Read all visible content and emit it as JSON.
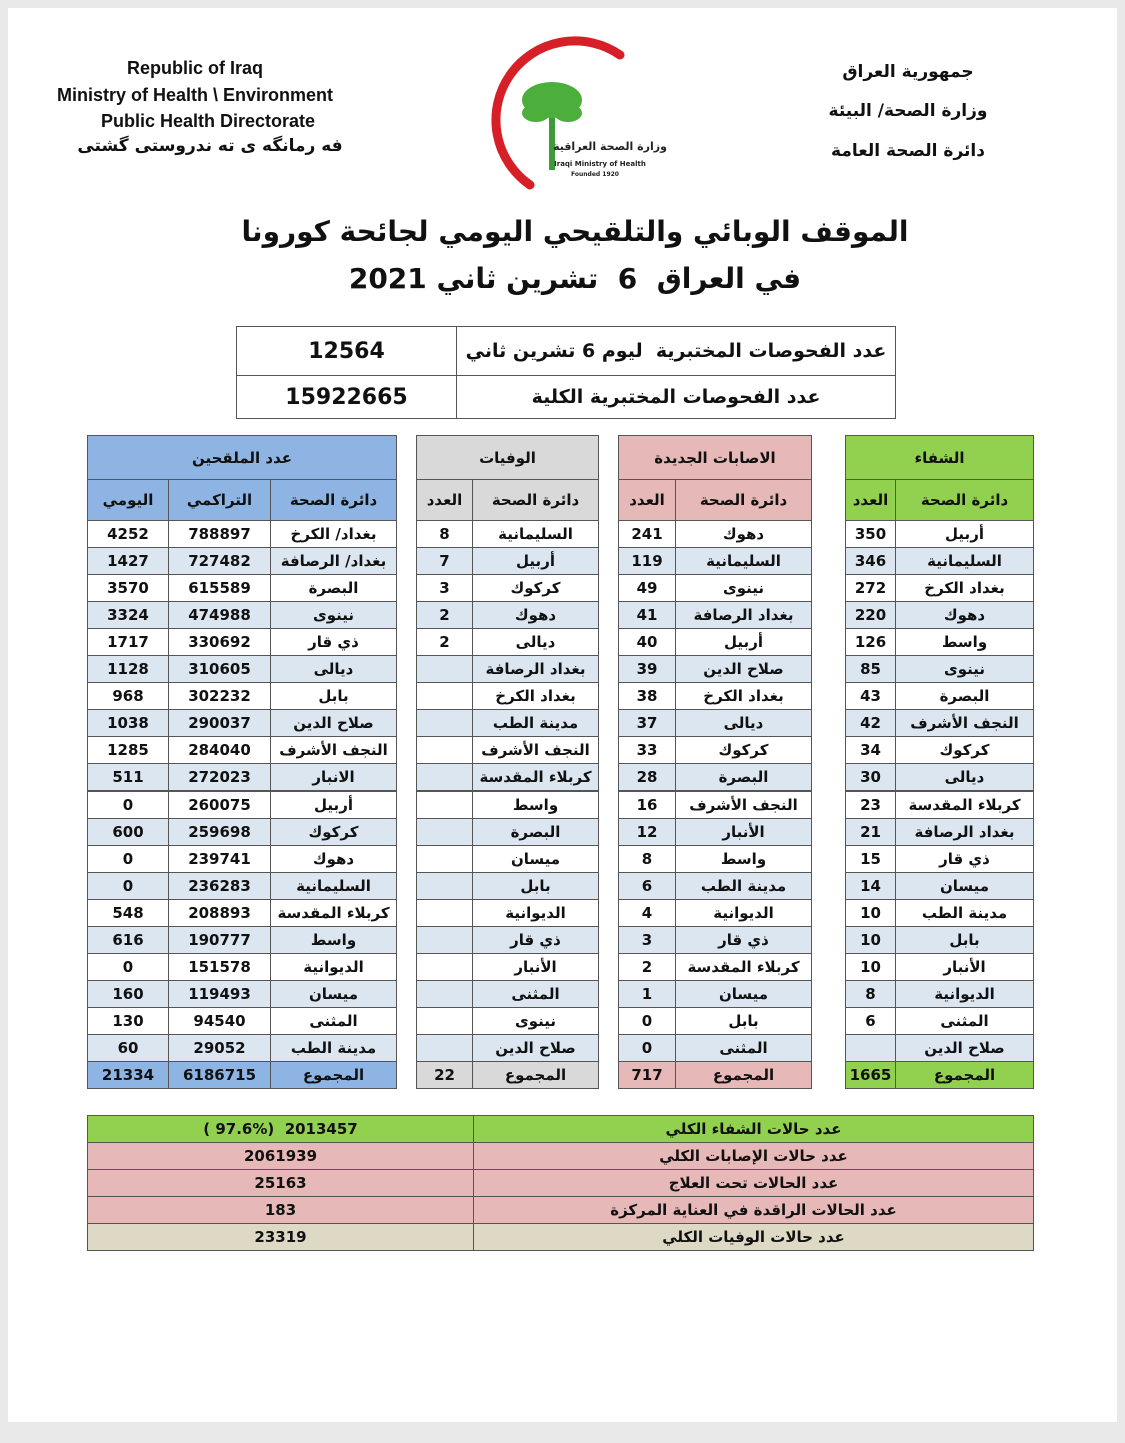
{
  "header": {
    "left": [
      "Republic of Iraq",
      "Ministry of Health \\ Environment",
      "Public Health Directorate",
      "فه رمانگه ى ته ندروستى گشتى"
    ],
    "right": [
      "جمهورية العراق",
      "وزارة الصحة/ البيئة",
      "دائرة الصحة العامة"
    ],
    "logo": [
      "وزارة الصحة العراقية",
      "Iraqi Ministry of Health",
      "Founded 1920"
    ]
  },
  "title": [
    "الموقف الوبائي والتلقيحي اليومي لجائحة كورونا",
    "في العراق  6  تشرين ثاني 2021"
  ],
  "tests": {
    "rows": [
      [
        "عدد الفحوصات المختبرية  ليوم 6 تشرين ثاني",
        12564
      ],
      [
        "عدد الفحوصات المختبرية الكلية",
        15922665
      ]
    ]
  },
  "recovered": {
    "title": "الشفاء",
    "headers": [
      "دائرة الصحة",
      "العدد"
    ],
    "rows": [
      [
        "أربيل",
        350
      ],
      [
        "السليمانية",
        346
      ],
      [
        "بغداد الكرخ",
        272
      ],
      [
        "دهوك",
        220
      ],
      [
        "واسط",
        126
      ],
      [
        "نينوى",
        85
      ],
      [
        "البصرة",
        43
      ],
      [
        "النجف الأشرف",
        42
      ],
      [
        "كركوك",
        34
      ],
      [
        "ديالى",
        30
      ],
      [
        "كربلاء المقدسة",
        23
      ],
      [
        "بغداد الرصافة",
        21
      ],
      [
        "ذي قار",
        15
      ],
      [
        "ميسان",
        14
      ],
      [
        "مدينة الطب",
        10
      ],
      [
        "بابل",
        10
      ],
      [
        "الأنبار",
        10
      ],
      [
        "الديوانية",
        8
      ],
      [
        "المثنى",
        6
      ],
      [
        "صلاح الدين",
        null
      ]
    ],
    "total": [
      "المجموع",
      1665
    ]
  },
  "cases": {
    "title": "الاصابات الجديدة",
    "headers": [
      "دائرة الصحة",
      "العدد"
    ],
    "rows": [
      [
        "دهوك",
        241
      ],
      [
        "السليمانية",
        119
      ],
      [
        "نينوى",
        49
      ],
      [
        "بغداد الرصافة",
        41
      ],
      [
        "أربيل",
        40
      ],
      [
        "صلاح الدين",
        39
      ],
      [
        "بغداد الكرخ",
        38
      ],
      [
        "ديالى",
        37
      ],
      [
        "كركوك",
        33
      ],
      [
        "البصرة",
        28
      ],
      [
        "النجف الأشرف",
        16
      ],
      [
        "الأنبار",
        12
      ],
      [
        "واسط",
        8
      ],
      [
        "مدينة الطب",
        6
      ],
      [
        "الديوانية",
        4
      ],
      [
        "ذي قار",
        3
      ],
      [
        "كربلاء المقدسة",
        2
      ],
      [
        "ميسان",
        1
      ],
      [
        "بابل",
        0
      ],
      [
        "المثنى",
        0
      ]
    ],
    "total": [
      "المجموع",
      717
    ]
  },
  "deaths": {
    "title": "الوفيات",
    "headers": [
      "دائرة الصحة",
      "العدد"
    ],
    "rows": [
      [
        "السليمانية",
        8
      ],
      [
        "أربيل",
        7
      ],
      [
        "كركوك",
        3
      ],
      [
        "دهوك",
        2
      ],
      [
        "ديالى",
        2
      ],
      [
        "بغداد الرصافة",
        null
      ],
      [
        "بغداد الكرخ",
        null
      ],
      [
        "مدينة الطب",
        null
      ],
      [
        "النجف الأشرف",
        null
      ],
      [
        "كربلاء المقدسة",
        null
      ],
      [
        "واسط",
        null
      ],
      [
        "البصرة",
        null
      ],
      [
        "ميسان",
        null
      ],
      [
        "بابل",
        null
      ],
      [
        "الديوانية",
        null
      ],
      [
        "ذي قار",
        null
      ],
      [
        "الأنبار",
        null
      ],
      [
        "المثنى",
        null
      ],
      [
        "نينوى",
        null
      ],
      [
        "صلاح الدين",
        null
      ]
    ],
    "total": [
      "المجموع",
      22
    ]
  },
  "vaccinated": {
    "title": "عدد الملقحين",
    "headers": [
      "دائرة الصحة",
      "التراكمي",
      "اليومي"
    ],
    "rows": [
      [
        "بغداد/ الكرخ",
        788897,
        4252
      ],
      [
        "بغداد/ الرصافة",
        727482,
        1427
      ],
      [
        "البصرة",
        615589,
        3570
      ],
      [
        "نينوى",
        474988,
        3324
      ],
      [
        "ذي قار",
        330692,
        1717
      ],
      [
        "ديالى",
        310605,
        1128
      ],
      [
        "بابل",
        302232,
        968
      ],
      [
        "صلاح الدين",
        290037,
        1038
      ],
      [
        "النجف الأشرف",
        284040,
        1285
      ],
      [
        "الانبار",
        272023,
        511
      ],
      [
        "أربيل",
        260075,
        0
      ],
      [
        "كركوك",
        259698,
        600
      ],
      [
        "دهوك",
        239741,
        0
      ],
      [
        "السليمانية",
        236283,
        0
      ],
      [
        "كربلاء المقدسة",
        208893,
        548
      ],
      [
        "واسط",
        190777,
        616
      ],
      [
        "الديوانية",
        151578,
        0
      ],
      [
        "ميسان",
        119493,
        160
      ],
      [
        "المثنى",
        94540,
        130
      ],
      [
        "مدينة الطب",
        29052,
        60
      ]
    ],
    "total": [
      "المجموع",
      6186715,
      21334
    ]
  },
  "summary": {
    "rows": [
      [
        "عدد حالات الشفاء الكلي",
        "2013457  (97.6% )"
      ],
      [
        "عدد حالات الإصابات الكلي",
        2061939
      ],
      [
        "عدد الحالات تحت العلاج",
        25163
      ],
      [
        "عدد الحالات الراقدة في العناية المركزة",
        183
      ],
      [
        "عدد حالات الوفيات الكلي",
        23319
      ]
    ]
  }
}
